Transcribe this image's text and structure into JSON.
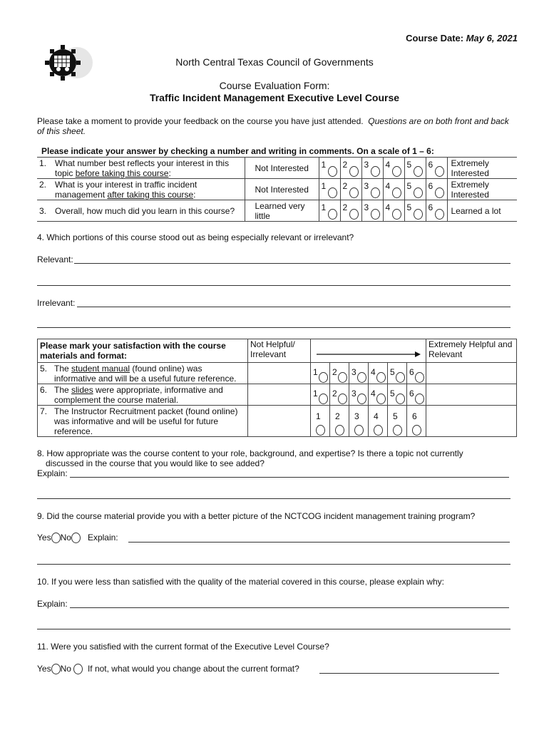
{
  "header": {
    "course_date_label": "Course Date:",
    "course_date": "May 6, 2021",
    "org": "North Central Texas Council of Governments",
    "form_title": "Course Evaluation Form:",
    "course_title": "Traffic Incident Management Executive Level Course",
    "logo_icon": "nctcog-gear-logo"
  },
  "intro": {
    "text": "Please take a moment to provide your feedback on the course you have just attended.",
    "italic": "Questions are on both front and back of this sheet."
  },
  "scale_instructions": "Please indicate your answer by checking a number and writing in comments.  On a scale of 1 – 6:",
  "scale": [
    "1",
    "2",
    "3",
    "4",
    "5",
    "6"
  ],
  "rating_questions": [
    {
      "num": "1.",
      "pre": "What number best reflects your interest in this topic ",
      "ul": "before taking this course",
      "post": ":",
      "low": "Not Interested",
      "high": "Extremely Interested"
    },
    {
      "num": "2.",
      "pre": "What is your interest in traffic incident management ",
      "ul": "after taking this course",
      "post": ":",
      "low": "Not Interested",
      "high": "Extremely Interested"
    },
    {
      "num": "3.",
      "pre": "Overall, how much did you learn in this course?",
      "ul": "",
      "post": "",
      "low": "Learned very little",
      "high": "Learned a lot"
    }
  ],
  "q4": {
    "text": "4.  Which portions of this course stood out as being especially relevant or irrelevant?",
    "relevant": "Relevant:",
    "irrelevant": "Irrelevant:"
  },
  "satisfaction": {
    "header": "Please mark your satisfaction with the course materials and format:",
    "low": "Not Helpful/ Irrelevant",
    "high": "Extremely Helpful and Relevant",
    "items": [
      {
        "num": "5.",
        "pre": "The ",
        "ul": "student manual",
        "post": " (found online) was informative and will be a useful future reference."
      },
      {
        "num": "6.",
        "pre": "The ",
        "ul": "slides",
        "post": " were appropriate, informative and complement the course material."
      },
      {
        "num": "7.",
        "pre": "The Instructor Recruitment packet (found online) was informative and will be useful for future reference.",
        "ul": "",
        "post": ""
      }
    ]
  },
  "q8": {
    "line1": "8.  How appropriate was the course content to your role, background, and expertise?  Is there a topic not currently",
    "line2": "discussed in the course that you would like to see added?",
    "explain": "Explain:"
  },
  "q9": {
    "text": "9.  Did the course material provide you with a better picture of the NCTCOG incident management training program?",
    "yes": "Yes",
    "no": "No",
    "explain": "Explain:"
  },
  "q10": {
    "text": "10.  If you were less than satisfied with the quality of the material covered in this course, please explain why:",
    "explain": "Explain:"
  },
  "q11": {
    "text": "11.  Were you satisfied with the current format of the Executive Level Course?",
    "yes": "Yes",
    "no": "No",
    "prompt": "If not, what would you change about the current format?"
  }
}
